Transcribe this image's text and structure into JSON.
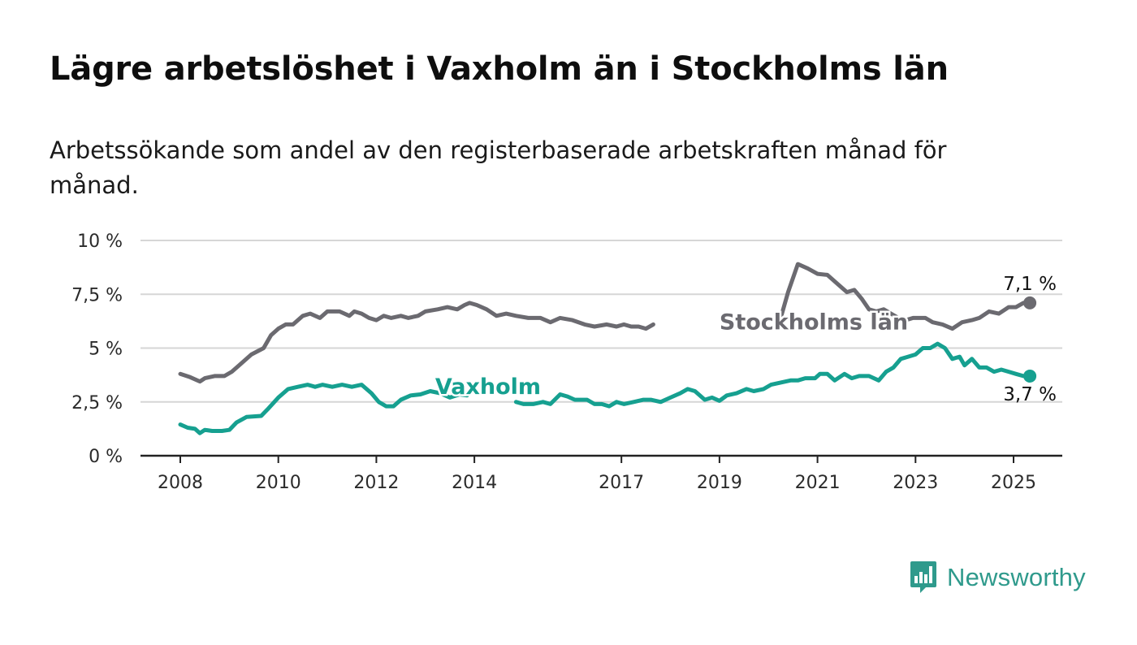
{
  "header": {
    "title": "Lägre arbetslöshet i Vaxholm än i Stockholms län",
    "subtitle": "Arbetssökande som andel av den registerbaserade arbetskraften månad för månad."
  },
  "brand": {
    "name": "Newsworthy",
    "icon": "newsworthy-logo-icon",
    "color": "#2f9a8c"
  },
  "chart_data": {
    "type": "line",
    "title": "Lägre arbetslöshet i Vaxholm än i Stockholms län",
    "subtitle": "Arbetssökande som andel av den registerbaserade arbetskraften månad för månad.",
    "xlabel": "",
    "ylabel": "",
    "ylim": [
      0,
      10
    ],
    "xlim": [
      2007.2,
      2026.0
    ],
    "y_ticks": [
      0,
      2.5,
      5,
      7.5,
      10
    ],
    "y_tick_labels": [
      "0 %",
      "2,5 %",
      "5 %",
      "7,5 %",
      "10 %"
    ],
    "x_ticks": [
      2008,
      2010,
      2012,
      2014,
      2017,
      2019,
      2021,
      2023,
      2025
    ],
    "x_tick_labels": [
      "2008",
      "2010",
      "2012",
      "2014",
      "2017",
      "2019",
      "2021",
      "2023",
      "2025"
    ],
    "grid": true,
    "legend": "none",
    "series": [
      {
        "name": "Stockholms län",
        "color": "#6b6a70",
        "end_label": "7,1 %",
        "segments": [
          [
            [
              2008.0,
              3.8
            ],
            [
              2008.2,
              3.65
            ],
            [
              2008.4,
              3.45
            ],
            [
              2008.5,
              3.6
            ],
            [
              2008.7,
              3.7
            ],
            [
              2008.9,
              3.7
            ],
            [
              2009.05,
              3.9
            ],
            [
              2009.2,
              4.2
            ],
            [
              2009.45,
              4.7
            ],
            [
              2009.7,
              5.0
            ],
            [
              2009.85,
              5.6
            ],
            [
              2010.0,
              5.9
            ],
            [
              2010.15,
              6.1
            ],
            [
              2010.3,
              6.1
            ],
            [
              2010.5,
              6.5
            ],
            [
              2010.65,
              6.6
            ],
            [
              2010.85,
              6.4
            ],
            [
              2011.0,
              6.7
            ],
            [
              2011.25,
              6.7
            ],
            [
              2011.45,
              6.5
            ],
            [
              2011.55,
              6.7
            ],
            [
              2011.7,
              6.6
            ],
            [
              2011.85,
              6.4
            ],
            [
              2012.0,
              6.3
            ],
            [
              2012.15,
              6.5
            ],
            [
              2012.3,
              6.4
            ],
            [
              2012.5,
              6.5
            ],
            [
              2012.65,
              6.4
            ],
            [
              2012.85,
              6.5
            ],
            [
              2013.0,
              6.7
            ],
            [
              2013.25,
              6.8
            ],
            [
              2013.45,
              6.9
            ],
            [
              2013.65,
              6.8
            ],
            [
              2013.8,
              7.0
            ],
            [
              2013.9,
              7.1
            ],
            [
              2014.05,
              7.0
            ],
            [
              2014.25,
              6.8
            ],
            [
              2014.45,
              6.5
            ],
            [
              2014.65,
              6.6
            ],
            [
              2014.85,
              6.5
            ],
            [
              2015.1,
              6.4
            ],
            [
              2015.35,
              6.4
            ],
            [
              2015.55,
              6.2
            ],
            [
              2015.75,
              6.4
            ],
            [
              2016.0,
              6.3
            ],
            [
              2016.25,
              6.1
            ],
            [
              2016.45,
              6.0
            ],
            [
              2016.7,
              6.1
            ],
            [
              2016.9,
              6.0
            ],
            [
              2017.05,
              6.1
            ],
            [
              2017.2,
              6.0
            ],
            [
              2017.35,
              6.0
            ],
            [
              2017.5,
              5.9
            ],
            [
              2017.65,
              6.1
            ]
          ],
          [
            [
              2020.25,
              6.4
            ],
            [
              2020.4,
              7.6
            ],
            [
              2020.6,
              8.9
            ],
            [
              2020.8,
              8.7
            ],
            [
              2021.0,
              8.45
            ],
            [
              2021.2,
              8.4
            ],
            [
              2021.4,
              8.0
            ],
            [
              2021.6,
              7.6
            ],
            [
              2021.75,
              7.7
            ],
            [
              2021.9,
              7.3
            ],
            [
              2022.05,
              6.8
            ],
            [
              2022.2,
              6.7
            ],
            [
              2022.35,
              6.8
            ],
            [
              2022.5,
              6.6
            ],
            [
              2022.65,
              6.4
            ],
            [
              2022.8,
              6.3
            ],
            [
              2022.95,
              6.4
            ],
            [
              2023.2,
              6.4
            ],
            [
              2023.35,
              6.2
            ],
            [
              2023.55,
              6.1
            ],
            [
              2023.75,
              5.9
            ],
            [
              2023.95,
              6.2
            ],
            [
              2024.15,
              6.3
            ],
            [
              2024.3,
              6.4
            ],
            [
              2024.5,
              6.7
            ],
            [
              2024.7,
              6.6
            ],
            [
              2024.9,
              6.9
            ],
            [
              2025.05,
              6.9
            ],
            [
              2025.2,
              7.1
            ]
          ]
        ]
      },
      {
        "name": "Vaxholm",
        "color": "#16a090",
        "end_label": "3,7 %",
        "segments": [
          [
            [
              2008.0,
              1.45
            ],
            [
              2008.15,
              1.3
            ],
            [
              2008.3,
              1.25
            ],
            [
              2008.4,
              1.05
            ],
            [
              2008.5,
              1.2
            ],
            [
              2008.65,
              1.15
            ],
            [
              2008.85,
              1.15
            ],
            [
              2009.0,
              1.2
            ],
            [
              2009.15,
              1.55
            ],
            [
              2009.35,
              1.8
            ],
            [
              2009.65,
              1.85
            ],
            [
              2009.8,
              2.2
            ],
            [
              2010.0,
              2.7
            ],
            [
              2010.2,
              3.1
            ],
            [
              2010.4,
              3.2
            ],
            [
              2010.6,
              3.3
            ],
            [
              2010.75,
              3.2
            ],
            [
              2010.9,
              3.3
            ],
            [
              2011.1,
              3.2
            ],
            [
              2011.3,
              3.3
            ],
            [
              2011.5,
              3.2
            ],
            [
              2011.7,
              3.3
            ],
            [
              2011.9,
              2.9
            ],
            [
              2012.05,
              2.5
            ],
            [
              2012.2,
              2.3
            ],
            [
              2012.35,
              2.3
            ],
            [
              2012.5,
              2.6
            ],
            [
              2012.7,
              2.8
            ],
            [
              2012.9,
              2.85
            ],
            [
              2013.1,
              3.0
            ],
            [
              2013.3,
              2.9
            ],
            [
              2013.5,
              2.7
            ],
            [
              2013.7,
              2.85
            ],
            [
              2013.85,
              2.8
            ]
          ],
          [
            [
              2014.85,
              2.5
            ],
            [
              2015.0,
              2.4
            ],
            [
              2015.2,
              2.4
            ],
            [
              2015.4,
              2.5
            ],
            [
              2015.55,
              2.4
            ],
            [
              2015.75,
              2.85
            ],
            [
              2015.9,
              2.75
            ],
            [
              2016.05,
              2.6
            ],
            [
              2016.3,
              2.6
            ],
            [
              2016.45,
              2.4
            ],
            [
              2016.6,
              2.4
            ],
            [
              2016.75,
              2.3
            ],
            [
              2016.9,
              2.5
            ],
            [
              2017.05,
              2.4
            ],
            [
              2017.25,
              2.5
            ],
            [
              2017.45,
              2.6
            ],
            [
              2017.6,
              2.6
            ],
            [
              2017.8,
              2.5
            ],
            [
              2018.0,
              2.7
            ],
            [
              2018.2,
              2.9
            ],
            [
              2018.35,
              3.1
            ],
            [
              2018.5,
              3.0
            ],
            [
              2018.7,
              2.6
            ],
            [
              2018.85,
              2.7
            ],
            [
              2019.0,
              2.55
            ],
            [
              2019.15,
              2.8
            ],
            [
              2019.35,
              2.9
            ],
            [
              2019.55,
              3.1
            ],
            [
              2019.7,
              3.0
            ],
            [
              2019.9,
              3.1
            ],
            [
              2020.05,
              3.3
            ],
            [
              2020.25,
              3.4
            ],
            [
              2020.45,
              3.5
            ],
            [
              2020.6,
              3.5
            ],
            [
              2020.75,
              3.6
            ],
            [
              2020.95,
              3.6
            ],
            [
              2021.05,
              3.8
            ],
            [
              2021.2,
              3.8
            ],
            [
              2021.35,
              3.5
            ],
            [
              2021.55,
              3.8
            ],
            [
              2021.7,
              3.6
            ],
            [
              2021.85,
              3.7
            ],
            [
              2022.05,
              3.7
            ],
            [
              2022.25,
              3.5
            ],
            [
              2022.4,
              3.9
            ],
            [
              2022.55,
              4.1
            ],
            [
              2022.7,
              4.5
            ],
            [
              2022.85,
              4.6
            ],
            [
              2023.0,
              4.7
            ],
            [
              2023.15,
              5.0
            ],
            [
              2023.3,
              5.0
            ],
            [
              2023.45,
              5.2
            ],
            [
              2023.6,
              5.0
            ],
            [
              2023.75,
              4.5
            ],
            [
              2023.9,
              4.6
            ],
            [
              2024.0,
              4.2
            ],
            [
              2024.15,
              4.5
            ],
            [
              2024.3,
              4.1
            ],
            [
              2024.45,
              4.1
            ],
            [
              2024.6,
              3.9
            ],
            [
              2024.75,
              4.0
            ],
            [
              2024.9,
              3.9
            ],
            [
              2025.05,
              3.8
            ],
            [
              2025.2,
              3.7
            ]
          ]
        ]
      }
    ],
    "annotations": [
      {
        "text": "Stockholms län",
        "series": "Stockholms län",
        "x": 2019.0,
        "y": 5.9,
        "weight": "bold"
      },
      {
        "text": "Vaxholm",
        "series": "Vaxholm",
        "x": 2013.2,
        "y": 2.9,
        "weight": "bold"
      }
    ]
  }
}
